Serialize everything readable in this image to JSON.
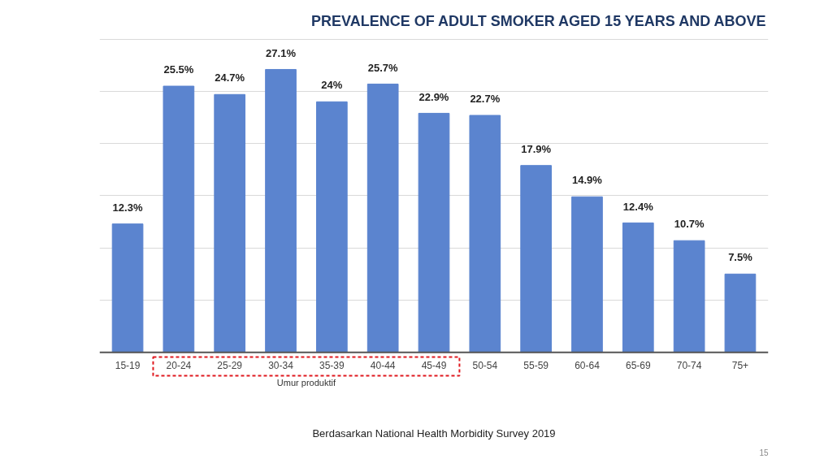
{
  "chart_data": {
    "type": "bar",
    "title": "PREVALENCE OF ADULT SMOKER AGED 15 YEARS AND ABOVE",
    "categories": [
      "15-19",
      "20-24",
      "25-29",
      "30-34",
      "35-39",
      "40-44",
      "45-49",
      "50-54",
      "55-59",
      "60-64",
      "65-69",
      "70-74",
      "75+"
    ],
    "values": [
      12.3,
      25.5,
      24.7,
      27.1,
      24,
      25.7,
      22.9,
      22.7,
      17.9,
      14.9,
      12.4,
      10.7,
      7.5
    ],
    "value_labels": [
      "12.3%",
      "25.5%",
      "24.7%",
      "27.1%",
      "24%",
      "25.7%",
      "22.9%",
      "22.7%",
      "17.9%",
      "14.9%",
      "12.4%",
      "10.7%",
      "7.5%"
    ],
    "color": "#5b84cf",
    "yticks": [
      {
        "value": 0,
        "label": null
      },
      {
        "value": 5,
        "label": null
      },
      {
        "value": 10,
        "label": null
      },
      {
        "value": 15,
        "label": null
      },
      {
        "value": 20,
        "label": null
      },
      {
        "value": 25,
        "label": null
      },
      {
        "value": 30,
        "label": null
      }
    ],
    "tick_labels": "x",
    "grid": "y",
    "annotations": [
      "Umur produktif",
      "Berdasarkan National Health Morbidity Survey 2019",
      "15"
    ]
  }
}
